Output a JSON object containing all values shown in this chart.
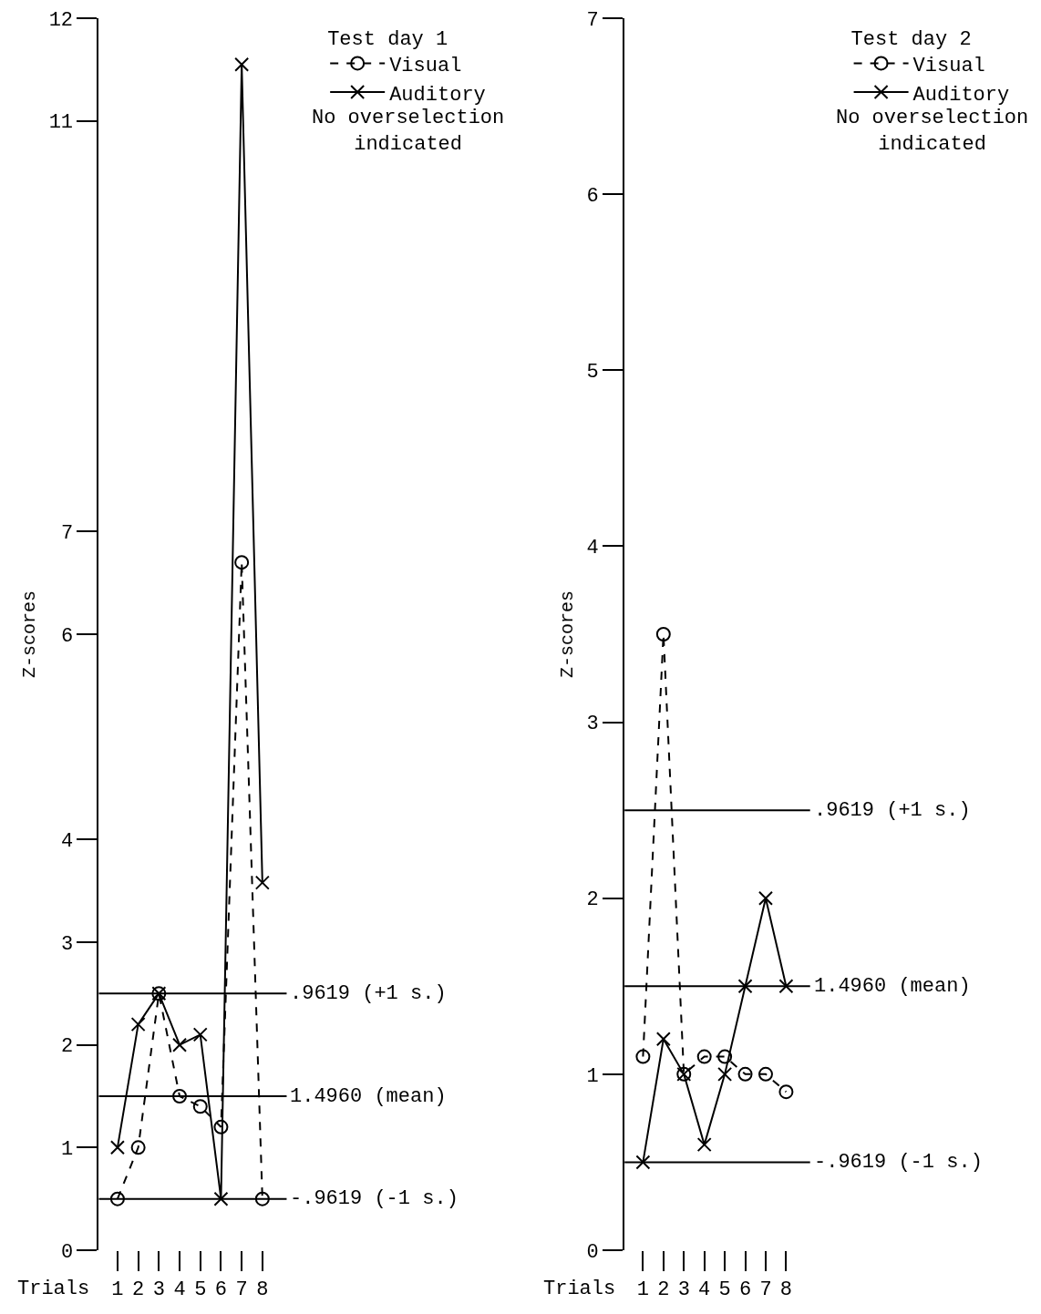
{
  "chart_data": [
    {
      "type": "line",
      "legend_title": "Test day 1",
      "xlabel": "Trials",
      "ylabel": "Z-scores",
      "categories": [
        "1",
        "2",
        "3",
        "4",
        "5",
        "6",
        "7",
        "8"
      ],
      "series": [
        {
          "name": "Visual",
          "color": "#000000",
          "marker": "circle",
          "line_style": "dashed",
          "values": [
            0.5,
            1.0,
            2.5,
            1.5,
            1.4,
            1.2,
            6.7,
            0.5
          ]
        },
        {
          "name": "Auditory",
          "color": "#000000",
          "marker": "cross",
          "line_style": "solid",
          "values": [
            1.0,
            2.2,
            2.5,
            2.0,
            2.1,
            0.5,
            11.55,
            3.58
          ]
        }
      ],
      "ylim": [
        0,
        12
      ],
      "yticks": [
        0,
        1,
        2,
        3,
        4,
        6,
        7,
        11,
        12
      ],
      "ref_lines": [
        {
          "axis": "y",
          "value": 2.5,
          "label": ".9619 (+1 s.)",
          "color": "#000000"
        },
        {
          "axis": "y",
          "value": 1.5,
          "label": "1.4960 (mean)",
          "color": "#000000"
        },
        {
          "axis": "y",
          "value": 0.5,
          "label": "-.9619 (-1 s.)",
          "color": "#000000"
        }
      ],
      "annotations": [
        "No overselection indicated"
      ],
      "legend": "top right"
    },
    {
      "type": "line",
      "legend_title": "Test day 2",
      "xlabel": "Trials",
      "ylabel": "Z-scores",
      "categories": [
        "1",
        "2",
        "3",
        "4",
        "5",
        "6",
        "7",
        "8"
      ],
      "series": [
        {
          "name": "Visual",
          "color": "#000000",
          "marker": "circle",
          "line_style": "dashed",
          "values": [
            1.1,
            3.5,
            1.0,
            1.1,
            1.1,
            1.0,
            1.0,
            0.9
          ]
        },
        {
          "name": "Auditory",
          "color": "#000000",
          "marker": "cross",
          "line_style": "solid",
          "values": [
            0.5,
            1.2,
            1.0,
            0.6,
            1.0,
            1.5,
            2.0,
            1.5
          ]
        }
      ],
      "ylim": [
        0,
        7
      ],
      "yticks": [
        0,
        1,
        2,
        3,
        4,
        5,
        6,
        7
      ],
      "ref_lines": [
        {
          "axis": "y",
          "value": 2.5,
          "label": ".9619 (+1 s.)",
          "color": "#000000"
        },
        {
          "axis": "y",
          "value": 1.5,
          "label": "1.4960 (mean)",
          "color": "#000000"
        },
        {
          "axis": "y",
          "value": 0.5,
          "label": "-.9619 (-1 s.)",
          "color": "#000000"
        }
      ],
      "annotations": [
        "No overselection indicated"
      ],
      "legend": "top right"
    }
  ]
}
